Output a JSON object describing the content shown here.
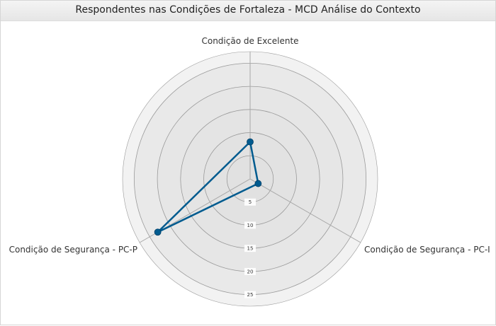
{
  "chart_data": {
    "type": "radar",
    "title": "Respondentes nas Condições de Fortaleza - MCD Análise do Contexto",
    "axes": [
      "Condição de Excelente",
      "Condição de Segurança - PC-I",
      "Condição de Segurança - PC-P"
    ],
    "series": [
      {
        "values": [
          8,
          2,
          23
        ]
      }
    ],
    "ticks": [
      "5",
      "10",
      "15",
      "20",
      "25"
    ],
    "rmax": 27.5,
    "grid": true,
    "colors": {
      "series": "#005b8f",
      "ring_fill_outer": "#f2f2f2",
      "ring_fill_inner": "#e2e2e2",
      "ring_stroke": "#9a9a9a",
      "axis_line": "#a8a8a8"
    }
  }
}
